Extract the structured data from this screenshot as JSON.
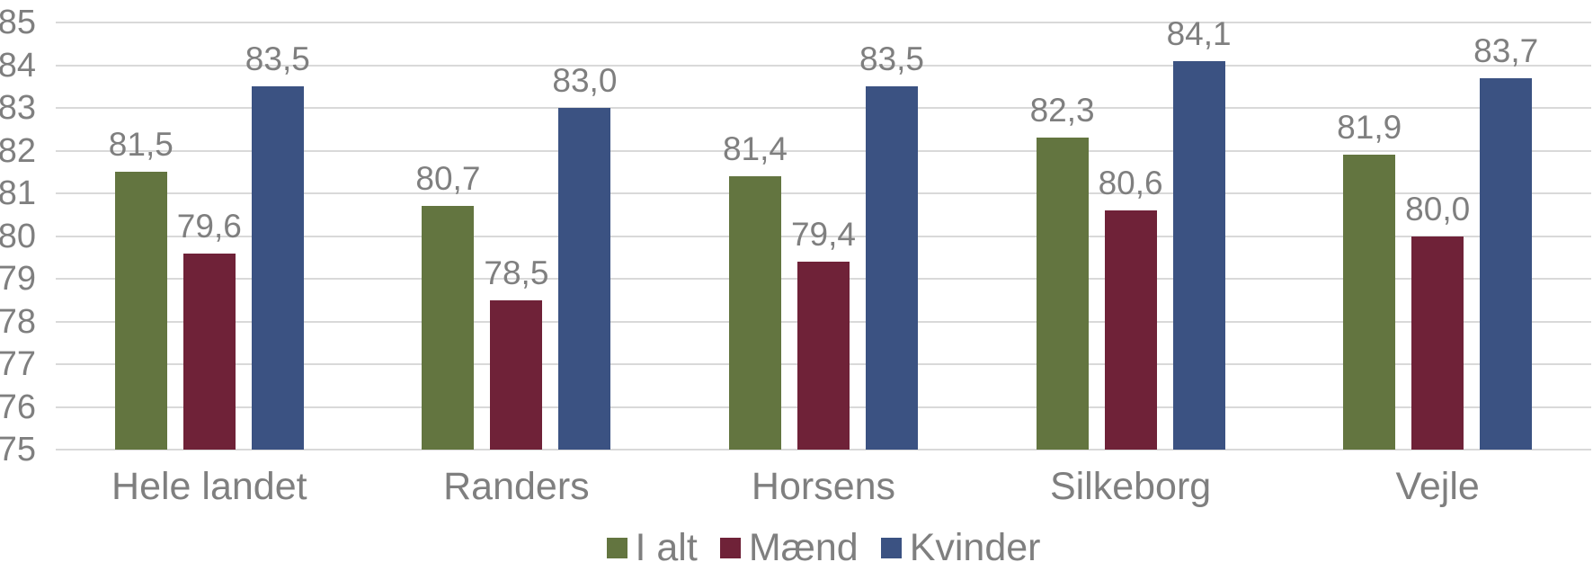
{
  "chart_data": {
    "type": "bar",
    "title": "",
    "xlabel": "",
    "ylabel": "",
    "categories": [
      "Hele landet",
      "Randers",
      "Horsens",
      "Silkeborg",
      "Vejle"
    ],
    "series": [
      {
        "id": "ialt",
        "name": "I alt",
        "color": "#637540",
        "values": [
          81.5,
          80.7,
          81.4,
          82.3,
          81.9
        ],
        "labels": [
          "81,5",
          "80,7",
          "81,4",
          "82,3",
          "81,9"
        ]
      },
      {
        "id": "maend",
        "name": "Mænd",
        "color": "#6F2238",
        "values": [
          79.6,
          78.5,
          79.4,
          80.6,
          80.0
        ],
        "labels": [
          "79,6",
          "78,5",
          "79,4",
          "80,6",
          "80,0"
        ]
      },
      {
        "id": "kvinder",
        "name": "Kvinder",
        "color": "#3B5282",
        "values": [
          83.5,
          83.0,
          83.5,
          84.1,
          83.7
        ],
        "labels": [
          "83,5",
          "83,0",
          "83,5",
          "84,1",
          "83,7"
        ]
      }
    ],
    "ylim": [
      75,
      85
    ],
    "yticks": [
      75,
      76,
      77,
      78,
      79,
      80,
      81,
      82,
      83,
      84,
      85
    ],
    "grid": true,
    "legend_position": "bottom",
    "decimal_separator": ",",
    "axis_text_color": "#7F7F7F",
    "gridline_color": "#D9D9D9",
    "background_color": "#FFFFFF"
  }
}
